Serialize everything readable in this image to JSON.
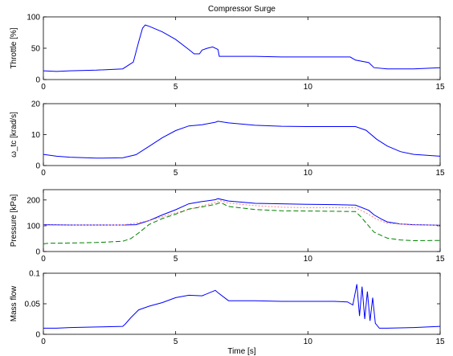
{
  "figure": {
    "title": "Compressor Surge",
    "xlabel": "Time [s]"
  },
  "chart_data": [
    {
      "type": "line",
      "ylabel": "Throttle [%]",
      "xlim": [
        0,
        15
      ],
      "ylim": [
        0,
        100
      ],
      "xticks": [
        0,
        5,
        10,
        15
      ],
      "yticks": [
        0,
        50,
        100
      ],
      "series": [
        {
          "color": "#0000ff",
          "dash": "",
          "x": [
            0,
            0.5,
            1,
            2,
            3,
            3.4,
            3.6,
            3.75,
            3.85,
            4.0,
            4.5,
            5.0,
            5.5,
            5.7,
            5.9,
            6.0,
            6.2,
            6.4,
            6.6,
            6.65,
            7,
            8,
            9,
            10,
            11,
            11.6,
            11.8,
            12.3,
            12.5,
            13,
            14,
            15
          ],
          "y": [
            14,
            13,
            14,
            15,
            17,
            28,
            60,
            82,
            87,
            85,
            76,
            64,
            48,
            41,
            41,
            47,
            50,
            52,
            48,
            37,
            37,
            37,
            36,
            36,
            36,
            36,
            31,
            27,
            19,
            17,
            17,
            19
          ]
        }
      ]
    },
    {
      "type": "line",
      "ylabel": "ω_tc [krad/s]",
      "xlim": [
        0,
        15
      ],
      "ylim": [
        0,
        20
      ],
      "xticks": [
        0,
        5,
        10,
        15
      ],
      "yticks": [
        0,
        10,
        20
      ],
      "series": [
        {
          "color": "#0000ff",
          "dash": "",
          "x": [
            0,
            0.5,
            1,
            2,
            3,
            3.5,
            4,
            4.5,
            5,
            5.5,
            6,
            6.5,
            6.6,
            7,
            8,
            9,
            10,
            11,
            11.5,
            11.8,
            12.2,
            12.6,
            13,
            13.5,
            14,
            15
          ],
          "y": [
            3.6,
            3.0,
            2.7,
            2.4,
            2.5,
            3.5,
            6.2,
            9.0,
            11.3,
            12.8,
            13.2,
            14.0,
            14.3,
            13.8,
            13.0,
            12.7,
            12.6,
            12.6,
            12.6,
            12.6,
            11.4,
            8.5,
            6.3,
            4.5,
            3.6,
            3.0
          ]
        }
      ]
    },
    {
      "type": "line",
      "ylabel": "Pressure [kPa]",
      "xlim": [
        0,
        15
      ],
      "ylim": [
        0,
        240
      ],
      "xticks": [
        0,
        5,
        10,
        15
      ],
      "yticks": [
        0,
        100,
        200
      ],
      "series": [
        {
          "color": "#0000ff",
          "dash": "",
          "x": [
            0,
            1,
            2,
            3,
            3.5,
            4,
            4.5,
            5,
            5.5,
            6,
            6.5,
            6.6,
            7,
            8,
            9,
            10,
            11,
            11.8,
            12.3,
            12.5,
            12.8,
            13,
            13.5,
            14,
            15
          ],
          "y": [
            104,
            103,
            103,
            103,
            104,
            120,
            142,
            162,
            185,
            194,
            201,
            205,
            196,
            187,
            185,
            183,
            182,
            180,
            160,
            142,
            125,
            115,
            107,
            104,
            102
          ]
        },
        {
          "color": "#ff8080",
          "dash": "2,2",
          "x": [
            0,
            3,
            3.5,
            4,
            5,
            5.5,
            6,
            6.5,
            6.7,
            7,
            8,
            9,
            10,
            11,
            11.8,
            12.2,
            12.6,
            13,
            14,
            15
          ],
          "y": [
            102,
            103,
            110,
            120,
            150,
            163,
            177,
            190,
            197,
            188,
            178,
            172,
            170,
            170,
            170,
            150,
            125,
            110,
            103,
            102
          ]
        },
        {
          "color": "#008000",
          "dash": "6,3",
          "x": [
            0,
            0.2,
            1,
            2,
            3,
            3.3,
            3.6,
            4,
            4.5,
            5,
            5.5,
            6,
            6.5,
            6.7,
            7,
            8,
            9,
            10,
            11,
            11.8,
            12.0,
            12.5,
            13,
            13.5,
            14,
            15
          ],
          "y": [
            30,
            32,
            33,
            35,
            40,
            50,
            72,
            105,
            128,
            145,
            165,
            173,
            183,
            190,
            175,
            163,
            158,
            157,
            156,
            155,
            135,
            75,
            52,
            45,
            42,
            43
          ]
        }
      ]
    },
    {
      "type": "line",
      "ylabel": "Mass flow",
      "xlim": [
        0,
        15
      ],
      "ylim": [
        0,
        0.1
      ],
      "xticks": [
        0,
        5,
        10,
        15
      ],
      "yticks": [
        0,
        0.05,
        0.1
      ],
      "series": [
        {
          "color": "#0000ff",
          "dash": "",
          "x": [
            0,
            0.5,
            1,
            2,
            3,
            3.1,
            3.3,
            3.6,
            4,
            4.5,
            5,
            5.5,
            6,
            6.5,
            6.6,
            7,
            8,
            9,
            10,
            11,
            11.5,
            11.7,
            11.85,
            11.95,
            12.05,
            12.15,
            12.25,
            12.35,
            12.45,
            12.55,
            12.7,
            13,
            14,
            15
          ],
          "y": [
            0.01,
            0.01,
            0.011,
            0.012,
            0.013,
            0.017,
            0.027,
            0.04,
            0.046,
            0.052,
            0.06,
            0.064,
            0.063,
            0.072,
            0.068,
            0.055,
            0.055,
            0.054,
            0.054,
            0.054,
            0.053,
            0.048,
            0.082,
            0.03,
            0.078,
            0.025,
            0.07,
            0.022,
            0.06,
            0.018,
            0.01,
            0.01,
            0.011,
            0.013
          ]
        }
      ]
    }
  ]
}
